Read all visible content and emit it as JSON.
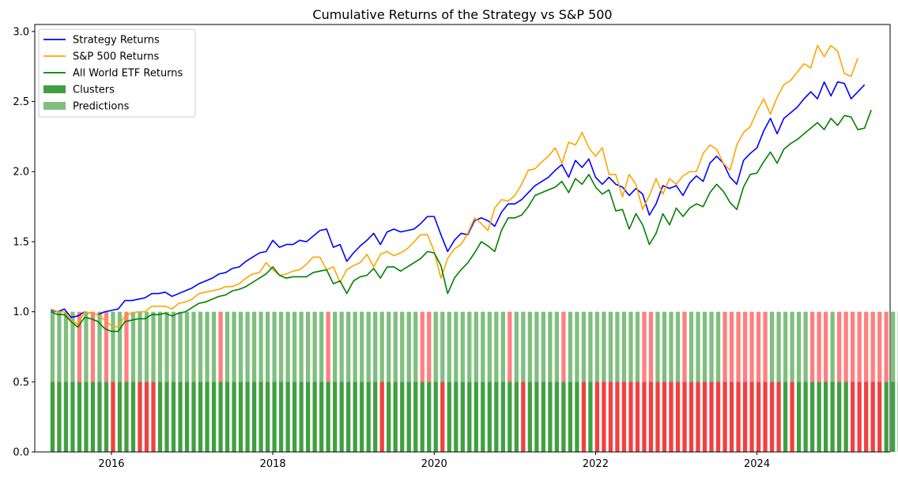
{
  "chart_data": {
    "type": "line",
    "title": "Cumulative Returns of the Strategy vs S&P 500",
    "xlabel": "",
    "ylabel": "",
    "xlim": [
      2015.05,
      2025.65
    ],
    "ylim": [
      0.0,
      3.05
    ],
    "x_ticks": [
      2016,
      2018,
      2020,
      2022,
      2024
    ],
    "y_ticks": [
      0.0,
      0.5,
      1.0,
      1.5,
      2.0,
      2.5,
      3.0
    ],
    "x_tick_labels": [
      "2016",
      "2018",
      "2020",
      "2022",
      "2024"
    ],
    "y_tick_labels": [
      "0.0",
      "0.5",
      "1.0",
      "1.5",
      "2.0",
      "2.5",
      "3.0"
    ],
    "grid": false,
    "legend_position": "top-left",
    "legend": [
      "Strategy Returns",
      "S&P 500 Returns",
      "All World ETF Returns",
      "Clusters",
      "Predictions"
    ],
    "start_date": "2015-04",
    "series": [
      {
        "name": "Strategy Returns",
        "color": "#0000ff",
        "values": [
          1.01,
          1.0,
          1.02,
          0.96,
          0.97,
          1.0,
          0.99,
          0.98,
          1.0,
          1.01,
          1.02,
          1.08,
          1.08,
          1.09,
          1.1,
          1.13,
          1.13,
          1.14,
          1.11,
          1.13,
          1.15,
          1.17,
          1.2,
          1.22,
          1.24,
          1.27,
          1.28,
          1.31,
          1.32,
          1.36,
          1.39,
          1.42,
          1.43,
          1.51,
          1.46,
          1.48,
          1.48,
          1.51,
          1.5,
          1.54,
          1.58,
          1.59,
          1.46,
          1.48,
          1.36,
          1.42,
          1.47,
          1.51,
          1.56,
          1.48,
          1.57,
          1.59,
          1.57,
          1.58,
          1.59,
          1.63,
          1.68,
          1.68,
          1.55,
          1.43,
          1.51,
          1.56,
          1.55,
          1.65,
          1.67,
          1.65,
          1.61,
          1.71,
          1.77,
          1.77,
          1.8,
          1.85,
          1.9,
          1.93,
          1.96,
          2.01,
          2.05,
          1.96,
          2.08,
          2.03,
          2.09,
          1.96,
          1.91,
          1.96,
          1.91,
          1.89,
          1.83,
          1.88,
          1.84,
          1.69,
          1.77,
          1.9,
          1.88,
          1.9,
          1.83,
          1.92,
          1.97,
          1.93,
          2.06,
          2.11,
          2.06,
          1.96,
          1.91,
          2.08,
          2.13,
          2.17,
          2.29,
          2.38,
          2.27,
          2.38,
          2.42,
          2.46,
          2.52,
          2.57,
          2.52,
          2.64,
          2.54,
          2.64,
          2.63,
          2.52,
          2.57,
          2.62
        ]
      },
      {
        "name": "S&P 500 Returns",
        "color": "#ffa500",
        "values": [
          1.02,
          1.0,
          1.0,
          0.94,
          0.91,
          1.0,
          0.99,
          0.98,
          0.94,
          0.9,
          0.89,
          0.97,
          0.99,
          1.0,
          1.0,
          1.04,
          1.04,
          1.04,
          1.02,
          1.06,
          1.07,
          1.09,
          1.13,
          1.14,
          1.15,
          1.16,
          1.18,
          1.18,
          1.2,
          1.24,
          1.27,
          1.28,
          1.35,
          1.3,
          1.26,
          1.27,
          1.29,
          1.3,
          1.34,
          1.39,
          1.39,
          1.3,
          1.32,
          1.21,
          1.3,
          1.33,
          1.35,
          1.41,
          1.32,
          1.41,
          1.43,
          1.4,
          1.42,
          1.45,
          1.5,
          1.55,
          1.55,
          1.43,
          1.24,
          1.38,
          1.45,
          1.48,
          1.56,
          1.67,
          1.63,
          1.58,
          1.74,
          1.8,
          1.79,
          1.83,
          1.91,
          2.01,
          2.02,
          2.07,
          2.11,
          2.17,
          2.06,
          2.21,
          2.19,
          2.28,
          2.17,
          2.11,
          2.17,
          1.98,
          1.98,
          1.82,
          1.98,
          1.91,
          1.73,
          1.83,
          1.95,
          1.84,
          1.95,
          1.91,
          1.97,
          2.0,
          2.0,
          2.13,
          2.19,
          2.16,
          2.06,
          2.01,
          2.19,
          2.28,
          2.32,
          2.43,
          2.52,
          2.41,
          2.53,
          2.62,
          2.65,
          2.71,
          2.77,
          2.74,
          2.9,
          2.82,
          2.9,
          2.86,
          2.7,
          2.68,
          2.81
        ]
      },
      {
        "name": "All World ETF Returns",
        "color": "#008000",
        "values": [
          1.0,
          0.98,
          0.98,
          0.93,
          0.89,
          0.96,
          0.95,
          0.93,
          0.88,
          0.86,
          0.86,
          0.93,
          0.94,
          0.95,
          0.95,
          0.98,
          0.98,
          0.99,
          0.97,
          0.99,
          1.0,
          1.03,
          1.06,
          1.07,
          1.09,
          1.11,
          1.12,
          1.15,
          1.16,
          1.18,
          1.21,
          1.24,
          1.27,
          1.32,
          1.26,
          1.24,
          1.25,
          1.25,
          1.25,
          1.28,
          1.29,
          1.3,
          1.2,
          1.22,
          1.13,
          1.22,
          1.25,
          1.26,
          1.31,
          1.24,
          1.32,
          1.32,
          1.29,
          1.32,
          1.35,
          1.38,
          1.43,
          1.42,
          1.33,
          1.13,
          1.24,
          1.3,
          1.35,
          1.42,
          1.5,
          1.47,
          1.43,
          1.58,
          1.67,
          1.67,
          1.69,
          1.75,
          1.83,
          1.85,
          1.87,
          1.89,
          1.93,
          1.85,
          1.95,
          1.91,
          1.98,
          1.89,
          1.84,
          1.87,
          1.72,
          1.73,
          1.59,
          1.7,
          1.62,
          1.48,
          1.56,
          1.7,
          1.62,
          1.74,
          1.68,
          1.74,
          1.77,
          1.75,
          1.85,
          1.91,
          1.86,
          1.78,
          1.73,
          1.89,
          1.98,
          1.99,
          2.07,
          2.14,
          2.06,
          2.16,
          2.2,
          2.23,
          2.27,
          2.31,
          2.35,
          2.3,
          2.38,
          2.33,
          2.4,
          2.39,
          2.3,
          2.31,
          2.44
        ]
      }
    ],
    "bars": [
      {
        "name": "Clusters",
        "bar_height": 0.5,
        "opacity": 0.75,
        "color_map": {
          "g": "#008000",
          "r": "#ee0000"
        },
        "states": "gggggggggrgggrrrgggggggggggggggggggggggggggggggggrggggggggrgggggggggggrggggggggrgrrrrrrrrrrrrrrrrrrrrrrrrrrrrgrggggggggrrrrrgggrrrrrrrrrrrrrrrrrrrrrrrrrrgggrgggrrrrrrrgggggggrrgggggggggggggggggrggggggggg"
      },
      {
        "name": "Predictions",
        "bar_bottom": 0.5,
        "bar_top": 1.0,
        "opacity": 0.5,
        "color_map": {
          "g": "#008000",
          "r": "#ff0000"
        },
        "states": "ggggrgrgrggrgggggggggggggrgggggggggggggggrgggggggggggggrrgggggggggggrgggggggrgggggggggggrrggggrgggggrrrrrrrggggggrrrgrrrrrrrrgggggrrrrrrrrrrrrrrrrrrrrrrgggggggrrrggggrgggggggggggrgggggggg"
      }
    ],
    "colors": {
      "strategy": "#0000ff",
      "sp500": "#ffa500",
      "all_world": "#008000",
      "green_bar": "#008000",
      "red_bar": "#ff0000",
      "text": "#000000"
    }
  }
}
